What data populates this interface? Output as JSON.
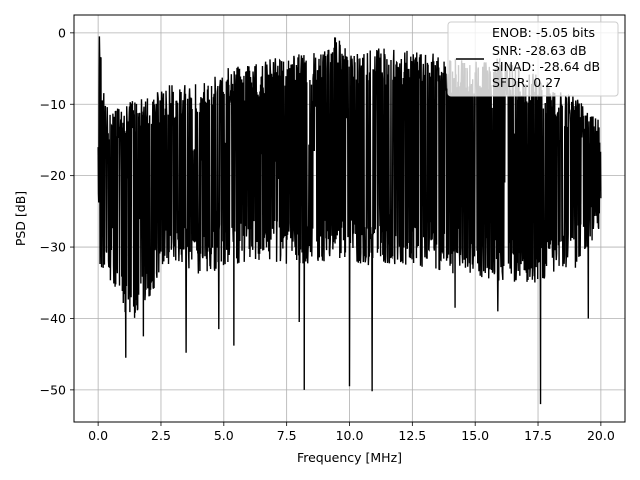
{
  "chart_data": {
    "type": "line",
    "title": "",
    "xlabel": "Frequency [MHz]",
    "ylabel": "PSD [dB]",
    "xlim": [
      -0.96,
      20.96
    ],
    "ylim": [
      -54.5,
      2.5
    ],
    "xticks": [
      0.0,
      2.5,
      5.0,
      7.5,
      10.0,
      12.5,
      15.0,
      17.5,
      20.0
    ],
    "xtick_labels": [
      "0.0",
      "2.5",
      "5.0",
      "7.5",
      "10.0",
      "12.5",
      "15.0",
      "17.5",
      "20.0"
    ],
    "yticks": [
      0,
      -10,
      -20,
      -30,
      -40,
      -50
    ],
    "ytick_labels": [
      "0",
      "−10",
      "−20",
      "−30",
      "−40",
      "−50"
    ],
    "grid": true,
    "legend_placement": "upper-right",
    "series": [
      {
        "color": "#000000",
        "x_range": [
          0.0,
          20.0
        ],
        "envelope": {
          "x": [
            0.0,
            0.05,
            0.3,
            0.7,
            1.0,
            1.5,
            2.0,
            2.5,
            3.0,
            4.0,
            5.0,
            6.0,
            7.0,
            8.0,
            9.0,
            9.3,
            10.0,
            11.0,
            12.0,
            13.0,
            14.0,
            15.0,
            16.0,
            17.0,
            17.5,
            18.0,
            19.0,
            20.0
          ],
          "upper": [
            -12.0,
            -0.5,
            -10.0,
            -10.0,
            -9.5,
            -9.5,
            -9.0,
            -8.0,
            -7.0,
            -6.5,
            -5.0,
            -4.5,
            -3.5,
            -3.0,
            -2.5,
            0.0,
            -2.5,
            -2.0,
            -2.5,
            -2.5,
            -3.5,
            -4.0,
            -3.5,
            -5.0,
            -5.5,
            -7.0,
            -9.0,
            -12.0
          ],
          "lower_typical": [
            -22.0,
            -33.0,
            -35.0,
            -37.0,
            -40.0,
            -41.0,
            -38.0,
            -33.0,
            -32.0,
            -34.0,
            -33.0,
            -32.0,
            -32.0,
            -33.0,
            -32.0,
            -32.0,
            -32.0,
            -33.0,
            -33.0,
            -33.0,
            -34.0,
            -34.0,
            -35.0,
            -35.0,
            -35.0,
            -34.0,
            -33.0,
            -27.0
          ]
        },
        "deep_nulls": [
          {
            "x": 1.1,
            "y": -45.5
          },
          {
            "x": 1.8,
            "y": -42.5
          },
          {
            "x": 3.5,
            "y": -44.8
          },
          {
            "x": 4.8,
            "y": -41.5
          },
          {
            "x": 5.4,
            "y": -43.8
          },
          {
            "x": 8.0,
            "y": -40.5
          },
          {
            "x": 8.2,
            "y": -50.0
          },
          {
            "x": 10.0,
            "y": -49.5
          },
          {
            "x": 10.9,
            "y": -50.2
          },
          {
            "x": 14.2,
            "y": -38.5
          },
          {
            "x": 15.9,
            "y": -39.0
          },
          {
            "x": 17.6,
            "y": -52.0
          },
          {
            "x": 19.5,
            "y": -40.0
          }
        ],
        "sample_count": 1600
      }
    ],
    "legend": {
      "lines": [
        "ENOB: -5.05 bits",
        "SNR: -28.63 dB",
        "SINAD: -28.64 dB",
        "SFDR: 0.27"
      ]
    }
  }
}
